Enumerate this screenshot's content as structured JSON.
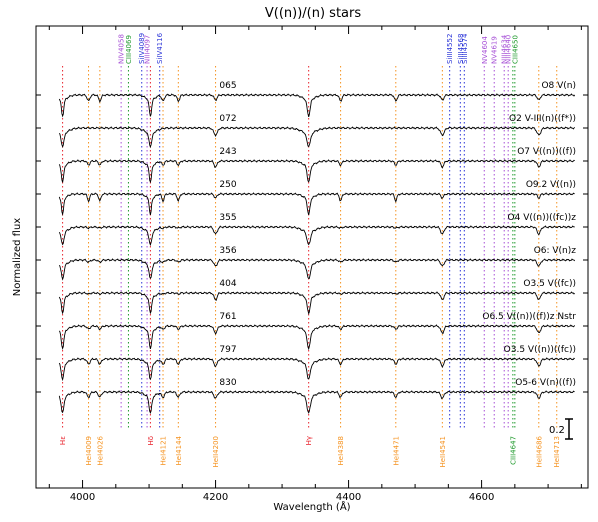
{
  "chart_data": {
    "type": "line",
    "title": "V((n))/(n) stars",
    "xlabel": "Wavelength (Å)",
    "ylabel": "Normalized flux",
    "xlim": [
      3930,
      4760
    ],
    "x_ticks": [
      4000,
      4200,
      4400,
      4600
    ],
    "scale_bar_label": "0.2",
    "colors": {
      "red": "#e8202a",
      "orange": "#f5921e",
      "blue": "#2b35d8",
      "purple": "#a64fd6",
      "green": "#1f9a2c",
      "spectrum": "#000000"
    },
    "top_lines": [
      {
        "label": "NIV4058",
        "wavelength": 4058,
        "color": "purple"
      },
      {
        "label": "CIII4069",
        "wavelength": 4069,
        "color": "green"
      },
      {
        "label": "SiIV4089",
        "wavelength": 4089,
        "color": "blue"
      },
      {
        "label": "NIII4097",
        "wavelength": 4097,
        "color": "purple"
      },
      {
        "label": "SiIV4116",
        "wavelength": 4116,
        "color": "blue"
      },
      {
        "label": "SiIII4552",
        "wavelength": 4552,
        "color": "blue"
      },
      {
        "label": "SiIII4568",
        "wavelength": 4568,
        "color": "blue"
      },
      {
        "label": "SiIII4574",
        "wavelength": 4574,
        "color": "blue"
      },
      {
        "label": "NV4604",
        "wavelength": 4604,
        "color": "purple"
      },
      {
        "label": "NV4619",
        "wavelength": 4619,
        "color": "purple"
      },
      {
        "label": "NIII4634",
        "wavelength": 4634,
        "color": "purple"
      },
      {
        "label": "NIII4640",
        "wavelength": 4640,
        "color": "purple"
      },
      {
        "label": "CIII4650",
        "wavelength": 4650,
        "color": "green"
      }
    ],
    "bottom_lines": [
      {
        "label": "Hε",
        "wavelength": 3970,
        "color": "red"
      },
      {
        "label": "HeI4009",
        "wavelength": 4009,
        "color": "orange"
      },
      {
        "label": "HeI4026",
        "wavelength": 4026,
        "color": "orange"
      },
      {
        "label": "Hδ",
        "wavelength": 4102,
        "color": "red"
      },
      {
        "label": "HeI4121",
        "wavelength": 4121,
        "color": "orange"
      },
      {
        "label": "HeI4144",
        "wavelength": 4144,
        "color": "orange"
      },
      {
        "label": "HeII4200",
        "wavelength": 4200,
        "color": "orange"
      },
      {
        "label": "Hγ",
        "wavelength": 4340,
        "color": "red"
      },
      {
        "label": "HeI4388",
        "wavelength": 4388,
        "color": "orange"
      },
      {
        "label": "HeI4471",
        "wavelength": 4471,
        "color": "orange"
      },
      {
        "label": "HeII4541",
        "wavelength": 4541,
        "color": "orange"
      },
      {
        "label": "CIII4647",
        "wavelength": 4647,
        "color": "green"
      },
      {
        "label": "HeII4686",
        "wavelength": 4686,
        "color": "orange"
      },
      {
        "label": "HeII4713",
        "wavelength": 4713,
        "color": "orange"
      }
    ],
    "stars": [
      {
        "id": "065",
        "sptype": "O8 V(n)",
        "depths": {
          "balmer": 0.16,
          "hei": 0.06,
          "heii": 0.05,
          "width": 3.5
        }
      },
      {
        "id": "072",
        "sptype": "O2 V-III(n)((f*))",
        "depths": {
          "balmer": 0.13,
          "hei": 0.0,
          "heii": 0.07,
          "width": 4.5
        }
      },
      {
        "id": "243",
        "sptype": "O7 V((n))((f))",
        "depths": {
          "balmer": 0.16,
          "hei": 0.04,
          "heii": 0.06,
          "width": 3.5
        }
      },
      {
        "id": "250",
        "sptype": "O9.2 V((n))",
        "depths": {
          "balmer": 0.16,
          "hei": 0.07,
          "heii": 0.04,
          "width": 3.0
        }
      },
      {
        "id": "355",
        "sptype": "O4 V((n))((fc))z",
        "depths": {
          "balmer": 0.13,
          "hei": 0.01,
          "heii": 0.07,
          "width": 4.0
        }
      },
      {
        "id": "356",
        "sptype": "O6: V(n)z",
        "depths": {
          "balmer": 0.14,
          "hei": 0.02,
          "heii": 0.06,
          "width": 4.0
        }
      },
      {
        "id": "404",
        "sptype": "O3.5 V((fc))",
        "depths": {
          "balmer": 0.15,
          "hei": 0.01,
          "heii": 0.07,
          "width": 3.5
        }
      },
      {
        "id": "761",
        "sptype": "O6.5 V((n))((f))z Nstr",
        "depths": {
          "balmer": 0.17,
          "hei": 0.03,
          "heii": 0.07,
          "width": 4.0
        }
      },
      {
        "id": "797",
        "sptype": "O3.5 V((n))((fc))",
        "depths": {
          "balmer": 0.15,
          "hei": 0.05,
          "heii": 0.07,
          "width": 4.0
        }
      },
      {
        "id": "830",
        "sptype": "O5-6 V(n)((f))",
        "depths": {
          "balmer": 0.16,
          "hei": 0.05,
          "heii": 0.06,
          "width": 4.0
        }
      }
    ]
  }
}
